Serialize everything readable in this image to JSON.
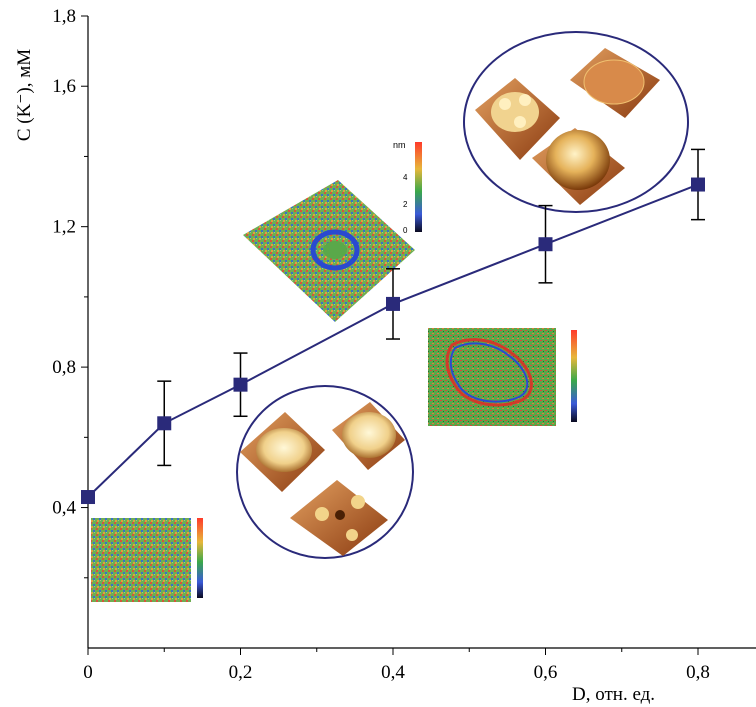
{
  "chart_data": {
    "type": "line",
    "title": "",
    "xlabel": "D, отн. ед.",
    "ylabel": "C (K⁻), мМ",
    "xlim": [
      0,
      0.9
    ],
    "ylim": [
      0,
      1.8
    ],
    "xticks": [
      "0",
      "0,2",
      "0,4",
      "0,6",
      "0,8"
    ],
    "xtick_values": [
      0,
      0.2,
      0.4,
      0.6,
      0.8
    ],
    "yticks": [
      "0,4",
      "0,8",
      "1,2",
      "1,6",
      "1,8"
    ],
    "ytick_values": [
      0.4,
      0.8,
      1.2,
      1.6,
      1.8
    ],
    "grid": false,
    "series": [
      {
        "x": [
          0,
          0.1,
          0.2,
          0.4,
          0.6,
          0.8
        ],
        "y": [
          0.43,
          0.64,
          0.75,
          0.98,
          1.15,
          1.32
        ],
        "err": [
          0,
          0.12,
          0.09,
          0.1,
          0.11,
          0.1
        ],
        "marker": "square",
        "color": "#2a2a7a"
      }
    ],
    "inset_colorbar_label": "nm",
    "inset_colorbar_ticks": [
      "4",
      "2",
      "0"
    ]
  }
}
